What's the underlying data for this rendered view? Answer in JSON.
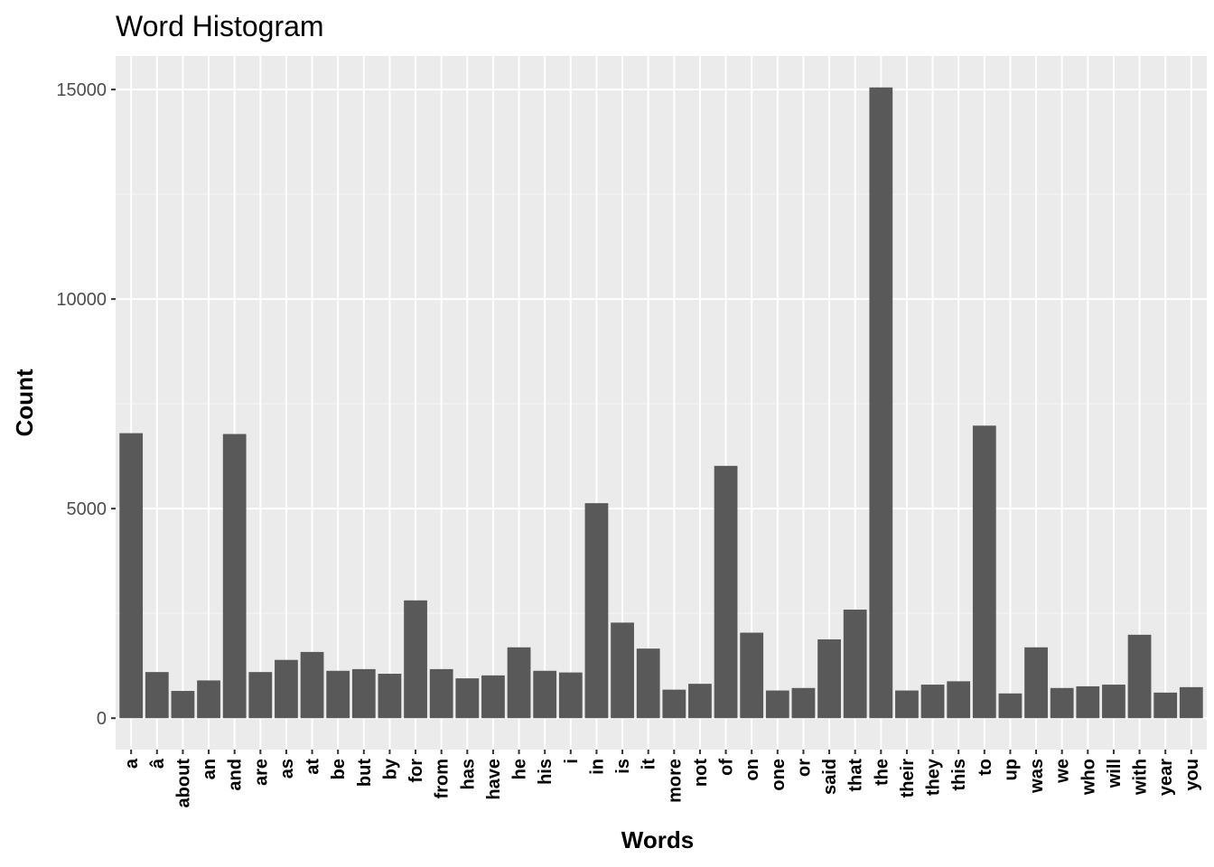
{
  "chart_data": {
    "type": "bar",
    "title": "Word Histogram",
    "xlabel": "Words",
    "ylabel": "Count",
    "ylim": [
      -750,
      15800
    ],
    "yticks": [
      0,
      5000,
      10000,
      15000
    ],
    "grid": true,
    "categories": [
      "a",
      "â",
      "about",
      "an",
      "and",
      "are",
      "as",
      "at",
      "be",
      "but",
      "by",
      "for",
      "from",
      "has",
      "have",
      "he",
      "his",
      "i",
      "in",
      "is",
      "it",
      "more",
      "not",
      "of",
      "on",
      "one",
      "or",
      "said",
      "that",
      "the",
      "their",
      "they",
      "this",
      "to",
      "up",
      "was",
      "we",
      "who",
      "will",
      "with",
      "year",
      "you"
    ],
    "values": [
      6800,
      1100,
      650,
      900,
      6780,
      1100,
      1390,
      1580,
      1130,
      1170,
      1060,
      2810,
      1170,
      950,
      1020,
      1690,
      1130,
      1090,
      5130,
      2280,
      1660,
      680,
      820,
      6020,
      2040,
      660,
      720,
      1880,
      2590,
      15050,
      660,
      800,
      880,
      6980,
      590,
      1690,
      720,
      760,
      800,
      1990,
      610,
      740
    ],
    "colors": {
      "bar": "#595959",
      "panel": "#ebebeb",
      "grid_major": "#ffffff",
      "tick": "#333333"
    }
  }
}
